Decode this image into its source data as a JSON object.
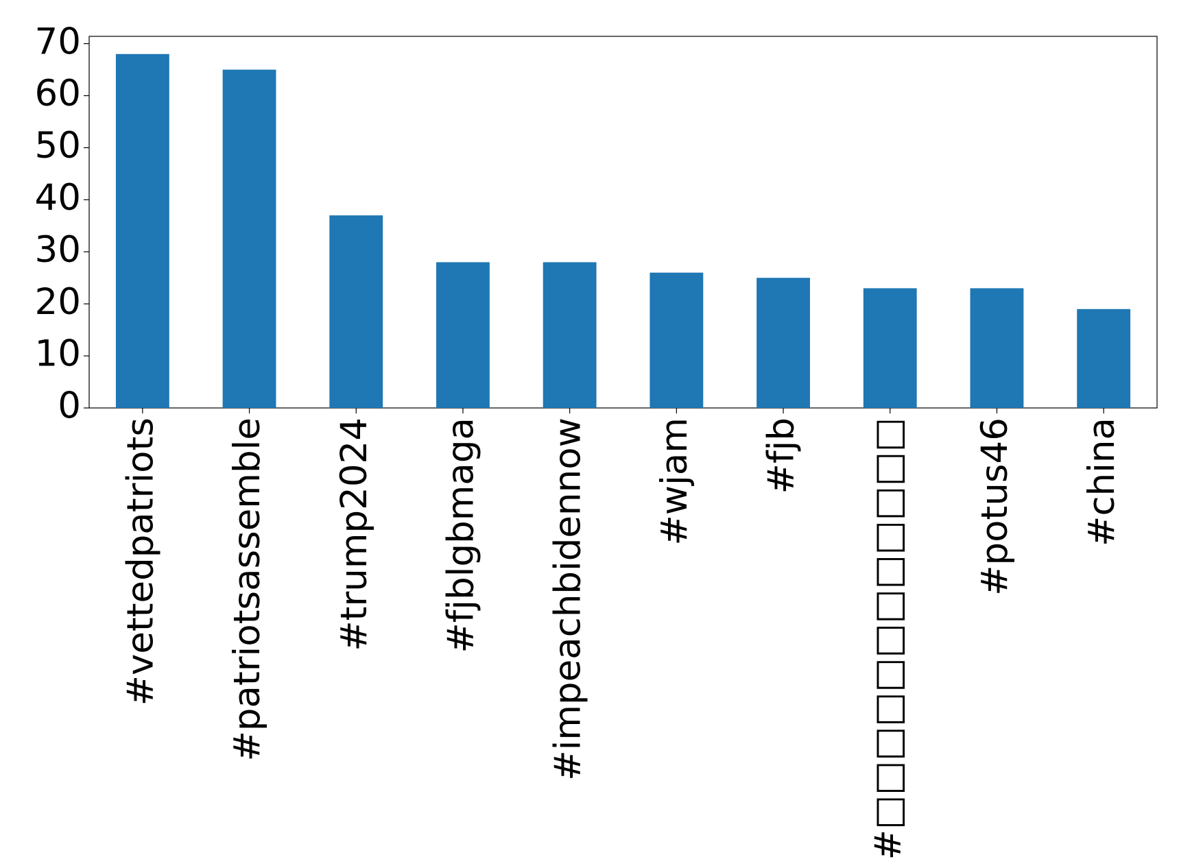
{
  "chart_data": {
    "type": "bar",
    "categories": [
      "#vettedpatriots",
      "#patriotsassemble",
      "#trump2024",
      "#fjblgbmaga",
      "#impeachbidennow",
      "#wjam",
      "#fjb",
      "#□□□□□□□□□□□□",
      "#potus46",
      "#china"
    ],
    "values": [
      68,
      65,
      37,
      28,
      28,
      26,
      25,
      23,
      23,
      19
    ],
    "color": "#1f77b4",
    "ylim": [
      0,
      71.4
    ],
    "yticks": [
      0,
      10,
      20,
      30,
      40,
      50,
      60,
      70
    ],
    "grid": false
  }
}
